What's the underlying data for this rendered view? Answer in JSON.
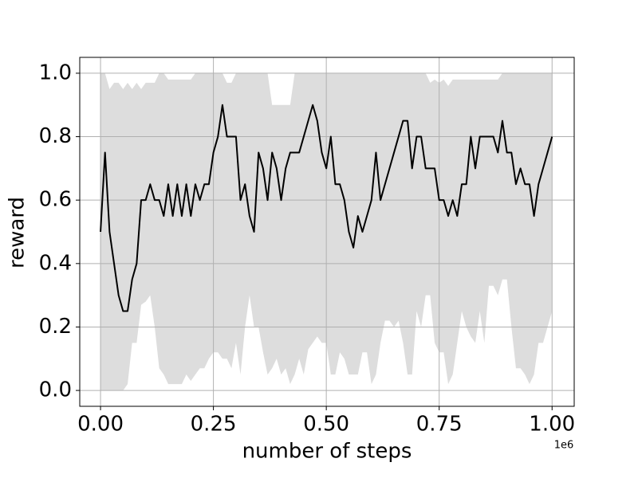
{
  "chart_data": {
    "type": "line",
    "xlabel": "number of steps",
    "ylabel": "reward",
    "x_offset_label": "1e6",
    "x": [
      0,
      0.01,
      0.02,
      0.03,
      0.04,
      0.05,
      0.06,
      0.07,
      0.08,
      0.09,
      0.1,
      0.11,
      0.12,
      0.13,
      0.14,
      0.15,
      0.16,
      0.17,
      0.18,
      0.19,
      0.2,
      0.21,
      0.22,
      0.23,
      0.24,
      0.25,
      0.26,
      0.27,
      0.28,
      0.29,
      0.3,
      0.31,
      0.32,
      0.33,
      0.34,
      0.35,
      0.36,
      0.37,
      0.38,
      0.39,
      0.4,
      0.41,
      0.42,
      0.43,
      0.44,
      0.45,
      0.46,
      0.47,
      0.48,
      0.49,
      0.5,
      0.51,
      0.52,
      0.53,
      0.54,
      0.55,
      0.56,
      0.57,
      0.58,
      0.59,
      0.6,
      0.61,
      0.62,
      0.63,
      0.64,
      0.65,
      0.66,
      0.67,
      0.68,
      0.69,
      0.7,
      0.71,
      0.72,
      0.73,
      0.74,
      0.75,
      0.76,
      0.77,
      0.78,
      0.79,
      0.8,
      0.81,
      0.82,
      0.83,
      0.84,
      0.85,
      0.86,
      0.87,
      0.88,
      0.89,
      0.9,
      0.91,
      0.92,
      0.93,
      0.94,
      0.95,
      0.96,
      0.97,
      0.98,
      0.99,
      1.0
    ],
    "series": [
      {
        "color": "#000000",
        "values": [
          0.5,
          0.75,
          0.5,
          0.4,
          0.3,
          0.25,
          0.25,
          0.35,
          0.4,
          0.6,
          0.6,
          0.65,
          0.6,
          0.6,
          0.55,
          0.65,
          0.55,
          0.65,
          0.55,
          0.65,
          0.55,
          0.65,
          0.6,
          0.65,
          0.65,
          0.75,
          0.8,
          0.9,
          0.8,
          0.8,
          0.8,
          0.6,
          0.65,
          0.55,
          0.5,
          0.75,
          0.7,
          0.6,
          0.75,
          0.7,
          0.6,
          0.7,
          0.75,
          0.75,
          0.75,
          0.8,
          0.85,
          0.9,
          0.85,
          0.75,
          0.7,
          0.8,
          0.65,
          0.65,
          0.6,
          0.5,
          0.45,
          0.55,
          0.5,
          0.55,
          0.6,
          0.75,
          0.6,
          0.65,
          0.7,
          0.75,
          0.8,
          0.85,
          0.85,
          0.7,
          0.8,
          0.8,
          0.7,
          0.7,
          0.7,
          0.6,
          0.6,
          0.55,
          0.6,
          0.55,
          0.65,
          0.65,
          0.8,
          0.7,
          0.8,
          0.8,
          0.8,
          0.8,
          0.75,
          0.85,
          0.75,
          0.75,
          0.65,
          0.7,
          0.65,
          0.65,
          0.55,
          0.65,
          0.7,
          0.75,
          0.8
        ]
      }
    ],
    "band": {
      "color": "#dddddd",
      "upper": [
        1,
        1,
        0.95,
        0.97,
        0.97,
        0.95,
        0.97,
        0.95,
        0.97,
        0.95,
        0.97,
        0.97,
        0.97,
        1,
        1,
        0.98,
        0.98,
        0.98,
        0.98,
        0.98,
        0.98,
        1,
        1,
        1,
        1,
        1,
        1,
        1,
        0.97,
        0.97,
        1,
        1,
        1,
        1,
        1,
        1,
        1,
        1,
        0.9,
        0.9,
        0.9,
        0.9,
        0.9,
        1,
        1,
        1,
        1,
        1,
        1,
        1,
        1,
        1,
        1,
        1,
        1,
        1,
        1,
        1,
        1,
        1,
        1,
        1,
        1,
        1,
        1,
        1,
        1,
        1,
        1,
        1,
        1,
        1,
        1,
        0.97,
        0.98,
        0.97,
        0.98,
        0.96,
        0.98,
        0.98,
        0.98,
        0.98,
        0.98,
        0.98,
        0.98,
        0.98,
        0.98,
        0.98,
        0.98,
        1,
        1,
        1,
        1,
        1,
        1,
        1,
        1,
        1,
        1,
        1,
        1
      ],
      "lower": [
        0,
        0,
        0,
        0,
        0,
        0,
        0.02,
        0.15,
        0.15,
        0.27,
        0.28,
        0.3,
        0.2,
        0.07,
        0.05,
        0.02,
        0.02,
        0.02,
        0.02,
        0.05,
        0.03,
        0.05,
        0.07,
        0.07,
        0.1,
        0.12,
        0.12,
        0.1,
        0.1,
        0.07,
        0.15,
        0.05,
        0.2,
        0.3,
        0.2,
        0.2,
        0.12,
        0.05,
        0.07,
        0.1,
        0.05,
        0.07,
        0.02,
        0.05,
        0.1,
        0.05,
        0.13,
        0.15,
        0.17,
        0.15,
        0.15,
        0.05,
        0.05,
        0.12,
        0.1,
        0.05,
        0.05,
        0.05,
        0.12,
        0.12,
        0.02,
        0.05,
        0.15,
        0.22,
        0.22,
        0.2,
        0.22,
        0.15,
        0.05,
        0.05,
        0.25,
        0.2,
        0.3,
        0.3,
        0.15,
        0.12,
        0.12,
        0.02,
        0.05,
        0.15,
        0.25,
        0.2,
        0.17,
        0.15,
        0.25,
        0.15,
        0.33,
        0.33,
        0.3,
        0.35,
        0.35,
        0.2,
        0.07,
        0.07,
        0.05,
        0.02,
        0.05,
        0.15,
        0.15,
        0.2,
        0.25
      ]
    },
    "xlim": [
      -0.046,
      1.049
    ],
    "ylim": [
      -0.05,
      1.05
    ],
    "xticks": [
      {
        "value": 0,
        "label": "0.00"
      },
      {
        "value": 0.25,
        "label": "0.25"
      },
      {
        "value": 0.5,
        "label": "0.50"
      },
      {
        "value": 0.75,
        "label": "0.75"
      },
      {
        "value": 1,
        "label": "1.00"
      }
    ],
    "yticks": [
      {
        "value": 0,
        "label": "0.0"
      },
      {
        "value": 0.2,
        "label": "0.2"
      },
      {
        "value": 0.4,
        "label": "0.4"
      },
      {
        "value": 0.6,
        "label": "0.6"
      },
      {
        "value": 0.8,
        "label": "0.8"
      },
      {
        "value": 1,
        "label": "1.0"
      }
    ],
    "grid": true
  }
}
